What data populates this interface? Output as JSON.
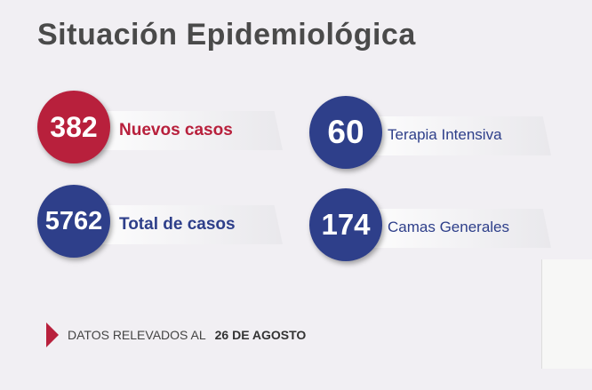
{
  "title": "Situación Epidemiológica",
  "stats": [
    {
      "value": "382",
      "label": "Nuevos casos",
      "color": "#b8203c"
    },
    {
      "value": "60",
      "label": "Terapia Intensiva",
      "color": "#2e3f8a"
    },
    {
      "value": "5762",
      "label": "Total de casos",
      "color": "#2e3f8a"
    },
    {
      "value": "174",
      "label": "Camas Generales",
      "color": "#2e3f8a"
    }
  ],
  "footer": {
    "prefix": "DATOS RELEVADOS AL",
    "date": "26 DE AGOSTO"
  }
}
